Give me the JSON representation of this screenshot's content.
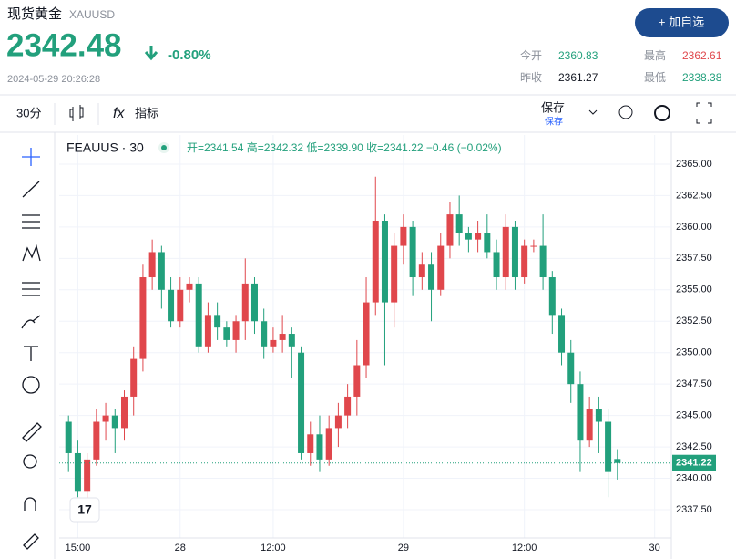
{
  "header": {
    "name": "现货黄金",
    "symbol": "XAUUSD",
    "price": "2342.48",
    "change": "-0.80%",
    "time": "2024-05-29 20:26:28",
    "button": "+ 加自选",
    "stats": [
      {
        "label": "今开",
        "value": "2360.83"
      },
      {
        "label": "最高",
        "value": "2362.61"
      },
      {
        "label": "昨收",
        "value": "2361.27"
      },
      {
        "label": "最低",
        "value": "2338.38"
      }
    ]
  },
  "toolbar": {
    "interval": "30分",
    "indicators": "指标",
    "save": "保存",
    "save_sub": "保存"
  },
  "legend": {
    "symbol": "FEAUUS · 30",
    "ohlc": "开=2341.54 高=2342.32 低=2339.90 收=2341.22 −0.46 (−0.02%)"
  },
  "chart_data": {
    "type": "candlestick",
    "up_color": "#e0474c",
    "down_color": "#22a07c",
    "open": [
      2344.5,
      2342,
      2339,
      2341.5,
      2344.5,
      2345,
      2344,
      2346.5,
      2349.5,
      2356,
      2358,
      2355,
      2352.5,
      2355,
      2355.5,
      2350.5,
      2353,
      2352,
      2351,
      2352.5,
      2355.5,
      2352.5,
      2350.5,
      2351,
      2351.5,
      2350,
      2342,
      2343.5,
      2341.5,
      2344,
      2345,
      2346.5,
      2349,
      2354,
      2360.5,
      2354,
      2358.5,
      2360,
      2356,
      2357,
      2355,
      2358.5,
      2361,
      2359.5,
      2359,
      2359.5,
      2358,
      2356,
      2360,
      2356,
      2358.5,
      2358.5,
      2356,
      2353,
      2350,
      2347.5,
      2343,
      2345.5,
      2344.5,
      2341.54
    ],
    "high": [
      2345,
      2343,
      2342,
      2345.5,
      2346,
      2345.5,
      2347,
      2350.5,
      2357,
      2359,
      2358.5,
      2356,
      2356,
      2356,
      2356,
      2354,
      2354,
      2352.5,
      2353,
      2357.5,
      2356,
      2353.5,
      2352,
      2353,
      2352,
      2350.5,
      2344.5,
      2345,
      2345,
      2346,
      2347.5,
      2351,
      2356,
      2364,
      2361,
      2359.5,
      2361,
      2360.5,
      2358,
      2358,
      2359.5,
      2362,
      2362.5,
      2360,
      2360.5,
      2361,
      2359,
      2361,
      2360.5,
      2359,
      2359,
      2361,
      2356.5,
      2353.5,
      2351,
      2348.5,
      2346.5,
      2346.5,
      2345.5,
      2342.32
    ],
    "low": [
      2340.5,
      2338.5,
      2337.8,
      2341,
      2343,
      2342,
      2343,
      2345,
      2348.5,
      2355,
      2353.5,
      2352,
      2352,
      2354,
      2350,
      2350,
      2351,
      2350.5,
      2350,
      2351,
      2351.5,
      2349.5,
      2350,
      2350,
      2348,
      2341.5,
      2341,
      2340.5,
      2341,
      2342.5,
      2344,
      2345,
      2348,
      2353,
      2349,
      2352,
      2357,
      2354.5,
      2355,
      2352.5,
      2354.5,
      2357.5,
      2358.5,
      2358,
      2358,
      2357.5,
      2355,
      2355,
      2355,
      2355.5,
      2358,
      2355,
      2351.5,
      2349,
      2346,
      2340.5,
      2342.5,
      2342,
      2338.5,
      2339.9
    ],
    "close": [
      2342,
      2339,
      2341.5,
      2344.5,
      2345,
      2344,
      2346.5,
      2349.5,
      2356,
      2358,
      2355,
      2352.5,
      2355,
      2355.5,
      2350.5,
      2353,
      2352,
      2351,
      2352.5,
      2355.5,
      2352.5,
      2350.5,
      2351,
      2351.5,
      2350.5,
      2342,
      2343.5,
      2341.5,
      2344,
      2345,
      2346.5,
      2349,
      2354,
      2360.5,
      2354,
      2358.5,
      2360,
      2356,
      2357,
      2355,
      2358.5,
      2361,
      2359.5,
      2359,
      2359.5,
      2358,
      2356,
      2360,
      2356,
      2358.5,
      2358.5,
      2356,
      2353,
      2350,
      2347.5,
      2343,
      2345.5,
      2344.5,
      2340.5,
      2341.22
    ],
    "last_price": 2341.22,
    "grid": true,
    "xlim": [
      -1,
      64.6
    ],
    "xticks": [
      {
        "value": 1,
        "label": "15:00"
      },
      {
        "value": 12,
        "label": "28"
      },
      {
        "value": 22,
        "label": "12:00"
      },
      {
        "value": 36,
        "label": "29"
      },
      {
        "value": 49,
        "label": "12:00"
      },
      {
        "value": 63,
        "label": "30"
      }
    ],
    "ylim": [
      2335.25,
      2367.32
    ],
    "yticks": [
      {
        "value": 2337.5,
        "label": "2337.50"
      },
      {
        "value": 2340,
        "label": "2340.00"
      },
      {
        "value": 2342.5,
        "label": "2342.50"
      },
      {
        "value": 2345,
        "label": "2345.00"
      },
      {
        "value": 2347.5,
        "label": "2347.50"
      },
      {
        "value": 2350,
        "label": "2350.00"
      },
      {
        "value": 2352.5,
        "label": "2352.50"
      },
      {
        "value": 2355,
        "label": "2355.00"
      },
      {
        "value": 2357.5,
        "label": "2357.50"
      },
      {
        "value": 2360,
        "label": "2360.00"
      },
      {
        "value": 2362.5,
        "label": "2362.50"
      },
      {
        "value": 2365,
        "label": "2365.00"
      }
    ]
  }
}
